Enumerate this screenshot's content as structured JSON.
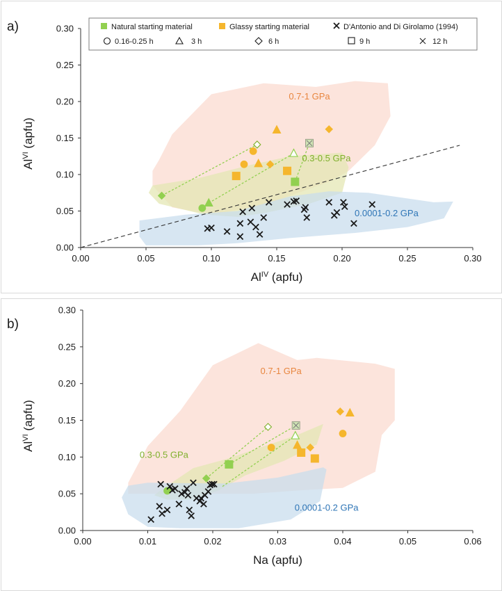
{
  "colors": {
    "natural": "#92d050",
    "glassy": "#f5b62d",
    "glassy_light": "#f6a623",
    "literature": "#1a1a1a",
    "region_high": "#fbd9cf",
    "region_mid": "#e4e7b4",
    "region_low": "#c7dced",
    "label_high": "#e8863f",
    "label_mid": "#7fb02c",
    "label_low": "#2e75b6"
  },
  "legend": {
    "natural": "Natural starting material",
    "glassy": "Glassy starting material",
    "literature": "D'Antonio and Di Girolamo (1994)",
    "t1": "0.16-0.25 h",
    "t2": "3 h",
    "t3": "6 h",
    "t4": "9 h",
    "t5": "12 h"
  },
  "chart_data": [
    {
      "panel": "a)",
      "type": "scatter",
      "xlabel": "Al",
      "xlabel_sup": "IV",
      "xlabel_unit": " (apfu)",
      "ylabel": "Al",
      "ylabel_sup": "VI",
      "ylabel_unit": " (apfu)",
      "xlim": [
        0,
        0.3
      ],
      "ylim": [
        0,
        0.3
      ],
      "xticks": [
        "0.00",
        "0.05",
        "0.10",
        "0.15",
        "0.20",
        "0.25",
        "0.30"
      ],
      "yticks": [
        "0.00",
        "0.05",
        "0.10",
        "0.15",
        "0.20",
        "0.25",
        "0.30"
      ],
      "reference_line": [
        [
          0,
          0
        ],
        [
          0.29,
          0.14
        ]
      ],
      "regions": [
        {
          "label": "0.7-1 GPa",
          "label_at": [
            0.175,
            0.203
          ],
          "color": "high",
          "polygon": [
            [
              0.06,
              0.12
            ],
            [
              0.07,
              0.155
            ],
            [
              0.1,
              0.21
            ],
            [
              0.14,
              0.225
            ],
            [
              0.18,
              0.22
            ],
            [
              0.21,
              0.228
            ],
            [
              0.235,
              0.225
            ],
            [
              0.237,
              0.18
            ],
            [
              0.225,
              0.14
            ],
            [
              0.205,
              0.105
            ],
            [
              0.19,
              0.09
            ],
            [
              0.14,
              0.058
            ],
            [
              0.1,
              0.045
            ],
            [
              0.07,
              0.055
            ],
            [
              0.055,
              0.085
            ],
            [
              0.055,
              0.105
            ]
          ]
        },
        {
          "label": "0.3-0.5 GPa",
          "label_at": [
            0.188,
            0.118
          ],
          "color": "mid",
          "polygon": [
            [
              0.055,
              0.085
            ],
            [
              0.09,
              0.095
            ],
            [
              0.13,
              0.113
            ],
            [
              0.16,
              0.125
            ],
            [
              0.2,
              0.13
            ],
            [
              0.205,
              0.11
            ],
            [
              0.2,
              0.075
            ],
            [
              0.175,
              0.06
            ],
            [
              0.14,
              0.047
            ],
            [
              0.12,
              0.042
            ],
            [
              0.095,
              0.045
            ],
            [
              0.06,
              0.06
            ],
            [
              0.052,
              0.075
            ]
          ]
        },
        {
          "label": "0.0001-0.2 GPa",
          "label_at": [
            0.234,
            0.043
          ],
          "color": "low",
          "polygon": [
            [
              0.045,
              0.037
            ],
            [
              0.08,
              0.045
            ],
            [
              0.12,
              0.05
            ],
            [
              0.16,
              0.07
            ],
            [
              0.19,
              0.077
            ],
            [
              0.22,
              0.075
            ],
            [
              0.27,
              0.062
            ],
            [
              0.285,
              0.063
            ],
            [
              0.278,
              0.04
            ],
            [
              0.25,
              0.028
            ],
            [
              0.21,
              0.02
            ],
            [
              0.16,
              0.013
            ],
            [
              0.12,
              0.006
            ],
            [
              0.09,
              0.003
            ],
            [
              0.05,
              0.003
            ],
            [
              0.045,
              0.015
            ]
          ]
        }
      ],
      "tielines": [
        [
          [
            0.062,
            0.071
          ],
          [
            0.135,
            0.141
          ]
        ],
        [
          [
            0.098,
            0.061
          ],
          [
            0.163,
            0.129
          ]
        ],
        [
          [
            0.164,
            0.09
          ],
          [
            0.175,
            0.143
          ]
        ]
      ],
      "series": [
        {
          "material": "natural",
          "symbol": "diamond",
          "hollow": false,
          "points": [
            [
              0.062,
              0.071
            ]
          ]
        },
        {
          "material": "natural",
          "symbol": "diamond",
          "hollow": true,
          "points": [
            [
              0.135,
              0.141
            ]
          ]
        },
        {
          "material": "natural",
          "symbol": "circle",
          "hollow": false,
          "points": [
            [
              0.093,
              0.054
            ]
          ]
        },
        {
          "material": "natural",
          "symbol": "triangle",
          "hollow": false,
          "points": [
            [
              0.098,
              0.061
            ]
          ]
        },
        {
          "material": "natural",
          "symbol": "triangle",
          "hollow": true,
          "points": [
            [
              0.163,
              0.129
            ]
          ]
        },
        {
          "material": "natural",
          "symbol": "square",
          "hollow": false,
          "points": [
            [
              0.164,
              0.09
            ]
          ]
        },
        {
          "material": "natural",
          "symbol": "square",
          "hollow": true,
          "points": [
            [
              0.175,
              0.143
            ]
          ]
        },
        {
          "material": "glassy",
          "symbol": "circle",
          "hollow": false,
          "points": [
            [
              0.132,
              0.132
            ],
            [
              0.125,
              0.114
            ]
          ]
        },
        {
          "material": "glassy",
          "symbol": "triangle",
          "hollow": false,
          "points": [
            [
              0.15,
              0.161
            ],
            [
              0.136,
              0.115
            ]
          ]
        },
        {
          "material": "glassy",
          "symbol": "diamond",
          "hollow": false,
          "points": [
            [
              0.19,
              0.162
            ],
            [
              0.145,
              0.114
            ]
          ]
        },
        {
          "material": "glassy",
          "symbol": "square",
          "hollow": false,
          "points": [
            [
              0.119,
              0.098
            ],
            [
              0.158,
              0.105
            ]
          ]
        },
        {
          "material": "literature",
          "symbol": "x",
          "hollow": false,
          "points": [
            [
              0.097,
              0.026
            ],
            [
              0.1,
              0.027
            ],
            [
              0.112,
              0.022
            ],
            [
              0.122,
              0.015
            ],
            [
              0.122,
              0.033
            ],
            [
              0.124,
              0.049
            ],
            [
              0.13,
              0.035
            ],
            [
              0.131,
              0.054
            ],
            [
              0.134,
              0.028
            ],
            [
              0.137,
              0.018
            ],
            [
              0.14,
              0.041
            ],
            [
              0.144,
              0.062
            ],
            [
              0.158,
              0.059
            ],
            [
              0.163,
              0.063
            ],
            [
              0.165,
              0.064
            ],
            [
              0.171,
              0.052
            ],
            [
              0.172,
              0.055
            ],
            [
              0.173,
              0.041
            ],
            [
              0.19,
              0.062
            ],
            [
              0.194,
              0.044
            ],
            [
              0.196,
              0.048
            ],
            [
              0.201,
              0.062
            ],
            [
              0.202,
              0.056
            ],
            [
              0.209,
              0.033
            ],
            [
              0.223,
              0.059
            ]
          ]
        }
      ]
    },
    {
      "panel": "b)",
      "type": "scatter",
      "xlabel": "Na",
      "xlabel_sup": "",
      "xlabel_unit": " (apfu)",
      "ylabel": "Al",
      "ylabel_sup": "VI",
      "ylabel_unit": " (apfu)",
      "xlim": [
        0,
        0.06
      ],
      "ylim": [
        0,
        0.3
      ],
      "xticks": [
        "0.00",
        "0.01",
        "0.02",
        "0.03",
        "0.04",
        "0.05",
        "0.06"
      ],
      "yticks": [
        "0.00",
        "0.05",
        "0.10",
        "0.15",
        "0.20",
        "0.25",
        "0.30"
      ],
      "reference_line": null,
      "regions": [
        {
          "label": "0.7-1 GPa",
          "label_at": [
            0.0305,
            0.213
          ],
          "color": "high",
          "polygon": [
            [
              0.007,
              0.065
            ],
            [
              0.01,
              0.115
            ],
            [
              0.015,
              0.163
            ],
            [
              0.02,
              0.225
            ],
            [
              0.027,
              0.255
            ],
            [
              0.033,
              0.232
            ],
            [
              0.036,
              0.235
            ],
            [
              0.045,
              0.227
            ],
            [
              0.048,
              0.22
            ],
            [
              0.048,
              0.15
            ],
            [
              0.046,
              0.13
            ],
            [
              0.045,
              0.08
            ],
            [
              0.04,
              0.058
            ],
            [
              0.034,
              0.055
            ],
            [
              0.026,
              0.05
            ],
            [
              0.018,
              0.05
            ],
            [
              0.012,
              0.05
            ],
            [
              0.007,
              0.05
            ]
          ]
        },
        {
          "label": "0.3-0.5 GPa",
          "label_at": [
            0.0125,
            0.099
          ],
          "color": "mid",
          "polygon": [
            [
              0.012,
              0.055
            ],
            [
              0.017,
              0.085
            ],
            [
              0.022,
              0.097
            ],
            [
              0.028,
              0.115
            ],
            [
              0.033,
              0.13
            ],
            [
              0.037,
              0.145
            ],
            [
              0.036,
              0.117
            ],
            [
              0.031,
              0.095
            ],
            [
              0.025,
              0.075
            ],
            [
              0.021,
              0.055
            ],
            [
              0.017,
              0.042
            ],
            [
              0.013,
              0.042
            ],
            [
              0.011,
              0.048
            ]
          ]
        },
        {
          "label": "0.0001-0.2 GPa",
          "label_at": [
            0.0375,
            0.027
          ],
          "color": "low",
          "polygon": [
            [
              0.007,
              0.061
            ],
            [
              0.01,
              0.065
            ],
            [
              0.022,
              0.064
            ],
            [
              0.03,
              0.072
            ],
            [
              0.037,
              0.086
            ],
            [
              0.0375,
              0.083
            ],
            [
              0.0365,
              0.04
            ],
            [
              0.032,
              0.015
            ],
            [
              0.024,
              0.003
            ],
            [
              0.015,
              0.003
            ],
            [
              0.01,
              0.005
            ],
            [
              0.007,
              0.022
            ],
            [
              0.006,
              0.045
            ]
          ]
        }
      ],
      "tielines": [
        [
          [
            0.019,
            0.071
          ],
          [
            0.0285,
            0.141
          ]
        ],
        [
          [
            0.0215,
            0.06
          ],
          [
            0.0327,
            0.129
          ]
        ],
        [
          [
            0.0225,
            0.09
          ],
          [
            0.0328,
            0.143
          ]
        ]
      ],
      "series": [
        {
          "material": "natural",
          "symbol": "diamond",
          "hollow": false,
          "points": [
            [
              0.019,
              0.071
            ]
          ]
        },
        {
          "material": "natural",
          "symbol": "diamond",
          "hollow": true,
          "points": [
            [
              0.0285,
              0.141
            ]
          ]
        },
        {
          "material": "natural",
          "symbol": "circle",
          "hollow": false,
          "points": [
            [
              0.013,
              0.054
            ]
          ]
        },
        {
          "material": "natural",
          "symbol": "triangle",
          "hollow": true,
          "points": [
            [
              0.0327,
              0.129
            ]
          ]
        },
        {
          "material": "natural",
          "symbol": "square",
          "hollow": false,
          "points": [
            [
              0.0225,
              0.09
            ]
          ]
        },
        {
          "material": "natural",
          "symbol": "square",
          "hollow": true,
          "points": [
            [
              0.0328,
              0.143
            ]
          ]
        },
        {
          "material": "glassy",
          "symbol": "circle",
          "hollow": false,
          "points": [
            [
              0.029,
              0.113
            ],
            [
              0.04,
              0.132
            ]
          ]
        },
        {
          "material": "glassy",
          "symbol": "triangle",
          "hollow": false,
          "points": [
            [
              0.033,
              0.116
            ],
            [
              0.0411,
              0.16
            ]
          ]
        },
        {
          "material": "glassy",
          "symbol": "diamond",
          "hollow": false,
          "points": [
            [
              0.035,
              0.113
            ],
            [
              0.0396,
              0.162
            ]
          ]
        },
        {
          "material": "glassy",
          "symbol": "square",
          "hollow": false,
          "points": [
            [
              0.0336,
              0.106
            ],
            [
              0.0357,
              0.098
            ]
          ]
        },
        {
          "material": "literature",
          "symbol": "x",
          "hollow": false,
          "points": [
            [
              0.0105,
              0.015
            ],
            [
              0.0118,
              0.033
            ],
            [
              0.012,
              0.063
            ],
            [
              0.0122,
              0.023
            ],
            [
              0.013,
              0.028
            ],
            [
              0.0134,
              0.06
            ],
            [
              0.0138,
              0.055
            ],
            [
              0.0142,
              0.057
            ],
            [
              0.0148,
              0.036
            ],
            [
              0.0152,
              0.05
            ],
            [
              0.0157,
              0.052
            ],
            [
              0.016,
              0.057
            ],
            [
              0.0162,
              0.048
            ],
            [
              0.0164,
              0.028
            ],
            [
              0.0167,
              0.02
            ],
            [
              0.017,
              0.065
            ],
            [
              0.0175,
              0.044
            ],
            [
              0.018,
              0.04
            ],
            [
              0.0182,
              0.044
            ],
            [
              0.0186,
              0.036
            ],
            [
              0.0188,
              0.048
            ],
            [
              0.0193,
              0.053
            ],
            [
              0.0196,
              0.062
            ],
            [
              0.0199,
              0.063
            ],
            [
              0.0202,
              0.063
            ]
          ]
        }
      ]
    }
  ]
}
